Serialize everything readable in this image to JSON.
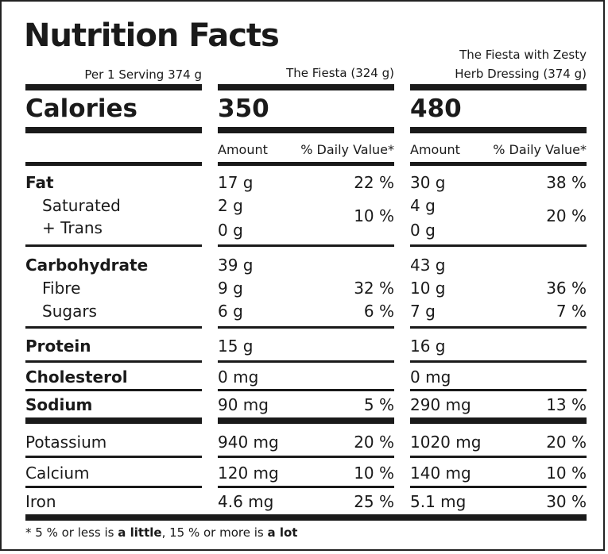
{
  "title": "Nutrition Facts",
  "serving": "Per 1 Serving 374 g",
  "col1_header": "The Fiesta (324 g)",
  "col2_header_line1": "The Fiesta with Zesty",
  "col2_header_line2": "Herb Dressing (374 g)",
  "calories_label": "Calories",
  "calories": [
    "350",
    "480"
  ],
  "amount_label": "Amount",
  "dv_label": "% Daily Value*",
  "rows": {
    "fat": {
      "label": "Fat",
      "c1": "17 g",
      "d1": "22 %",
      "c2": "30 g",
      "d2": "38 %"
    },
    "saturated": {
      "label": "Saturated",
      "c1": "2 g",
      "c2": "4 g"
    },
    "trans": {
      "label": "+ Trans",
      "c1": "0 g",
      "c2": "0 g"
    },
    "sat_trans_dv": {
      "d1": "10 %",
      "d2": "20 %"
    },
    "carbohydrate": {
      "label": "Carbohydrate",
      "c1": "39 g",
      "c2": "43 g"
    },
    "fibre": {
      "label": "Fibre",
      "c1": "9 g",
      "d1": "32 %",
      "c2": "10 g",
      "d2": "36 %"
    },
    "sugars": {
      "label": "Sugars",
      "c1": "6 g",
      "d1": "6 %",
      "c2": "7 g",
      "d2": "7 %"
    },
    "protein": {
      "label": "Protein",
      "c1": "15 g",
      "c2": "16 g"
    },
    "cholesterol": {
      "label": "Cholesterol",
      "c1": "0 mg",
      "c2": "0 mg"
    },
    "sodium": {
      "label": "Sodium",
      "c1": "90 mg",
      "d1": "5 %",
      "c2": "290 mg",
      "d2": "13 %"
    },
    "potassium": {
      "label": "Potassium",
      "c1": "940 mg",
      "d1": "20 %",
      "c2": "1020 mg",
      "d2": "20 %"
    },
    "calcium": {
      "label": "Calcium",
      "c1": "120 mg",
      "d1": "10 %",
      "c2": "140 mg",
      "d2": "10 %"
    },
    "iron": {
      "label": "Iron",
      "c1": "4.6 mg",
      "d1": "25 %",
      "c2": "5.1 mg",
      "d2": "30 %"
    }
  },
  "footnote": {
    "p1": "* 5 % or less is ",
    "b1": "a little",
    "p2": ", 15 %  or more is ",
    "b2": "a lot"
  }
}
